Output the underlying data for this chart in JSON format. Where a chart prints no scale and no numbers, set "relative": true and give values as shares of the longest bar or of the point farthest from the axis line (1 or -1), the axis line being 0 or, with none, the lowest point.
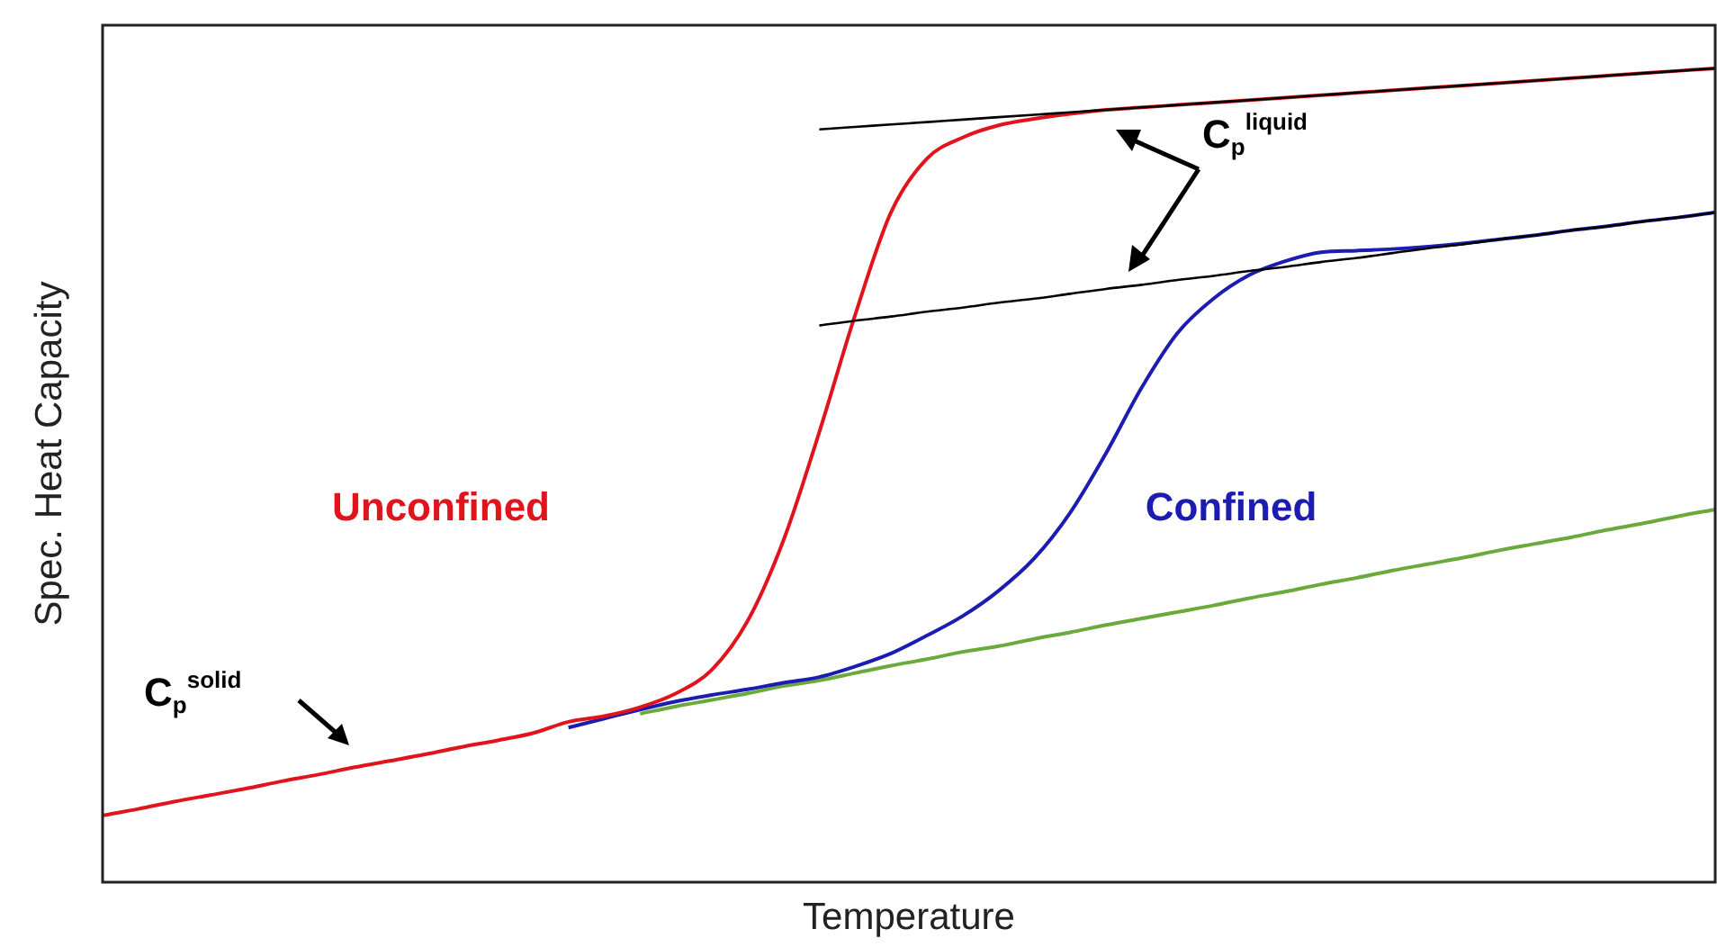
{
  "chart_data": {
    "type": "line",
    "relative": true,
    "xlabel": "Temperature",
    "ylabel": "Spec. Heat Capacity",
    "legend": false,
    "marker": "none",
    "line_style": "solid",
    "categories": [
      null,
      null,
      null,
      null,
      null,
      null,
      null,
      null,
      null,
      null,
      null,
      null,
      null,
      null,
      null,
      null,
      null,
      null,
      null,
      null,
      null,
      null,
      null,
      null,
      null,
      null,
      null,
      null,
      null,
      null,
      null,
      null,
      null,
      null,
      null,
      null,
      null,
      null,
      null,
      null,
      null,
      null,
      null,
      null,
      null,
      null
    ],
    "annotations": [
      "C$_{p}$$^{solid}$",
      "C$_{p}$$^{liquid}$"
    ],
    "series": [
      {
        "color": "#6aaa3a",
        "values": [
          null,
          null,
          null,
          null,
          null,
          null,
          null,
          null,
          null,
          null,
          null,
          null,
          null,
          null,
          null,
          0.207,
          0.216,
          0.224,
          0.232,
          0.241,
          0.248,
          0.257,
          0.266,
          0.274,
          0.283,
          0.29,
          0.299,
          0.307,
          0.316,
          0.324,
          0.332,
          0.34,
          0.349,
          0.357,
          0.366,
          0.374,
          0.383,
          0.391,
          0.399,
          0.408,
          0.416,
          0.424,
          0.433,
          0.441,
          0.45,
          0.458
        ]
      },
      {
        "name": "Confined",
        "color": "#1c1cb0",
        "values": [
          null,
          null,
          null,
          null,
          null,
          null,
          null,
          null,
          null,
          null,
          null,
          null,
          null,
          0.19,
          0.201,
          0.212,
          0.222,
          0.23,
          0.237,
          0.245,
          0.252,
          0.265,
          0.281,
          0.303,
          0.327,
          0.358,
          0.398,
          0.454,
          0.527,
          0.608,
          0.675,
          0.717,
          0.746,
          0.763,
          0.774,
          0.776,
          0.778,
          0.781,
          0.785,
          0.79,
          0.795,
          0.801,
          0.806,
          0.812,
          0.817,
          0.823
        ]
      },
      {
        "name": "Unconfined",
        "color": "#e0141c",
        "values": [
          0.082,
          0.09,
          0.099,
          0.107,
          0.115,
          0.124,
          0.132,
          0.141,
          0.149,
          0.157,
          0.166,
          0.174,
          0.183,
          0.197,
          0.204,
          0.215,
          0.232,
          0.261,
          0.321,
          0.42,
          0.553,
          0.697,
          0.823,
          0.889,
          0.915,
          0.93,
          0.938,
          0.944,
          0.949,
          0.952,
          0.955,
          0.958,
          0.961,
          0.964,
          0.967,
          0.97,
          0.973,
          0.976,
          0.979,
          0.982,
          0.985,
          0.988,
          0.991,
          0.994,
          0.997,
          1.0
        ]
      },
      {
        "color": "#000000",
        "values": [
          null,
          null,
          null,
          null,
          null,
          null,
          null,
          null,
          null,
          null,
          null,
          null,
          null,
          null,
          null,
          null,
          null,
          null,
          null,
          null,
          0.925,
          0.928,
          0.931,
          0.934,
          0.937,
          0.94,
          0.943,
          0.946,
          0.949,
          0.952,
          0.955,
          0.958,
          0.961,
          0.964,
          0.967,
          0.97,
          0.973,
          0.976,
          0.979,
          0.982,
          0.985,
          0.988,
          0.991,
          0.994,
          0.997,
          1.0
        ]
      },
      {
        "color": "#000000",
        "values": [
          null,
          null,
          null,
          null,
          null,
          null,
          null,
          null,
          null,
          null,
          null,
          null,
          null,
          null,
          null,
          null,
          null,
          null,
          null,
          null,
          0.684,
          0.69,
          0.695,
          0.701,
          0.706,
          0.712,
          0.717,
          0.723,
          0.729,
          0.734,
          0.74,
          0.745,
          0.751,
          0.756,
          0.762,
          0.767,
          0.773,
          0.779,
          0.784,
          0.79,
          0.795,
          0.801,
          0.806,
          0.812,
          0.817,
          0.823
        ]
      }
    ]
  }
}
